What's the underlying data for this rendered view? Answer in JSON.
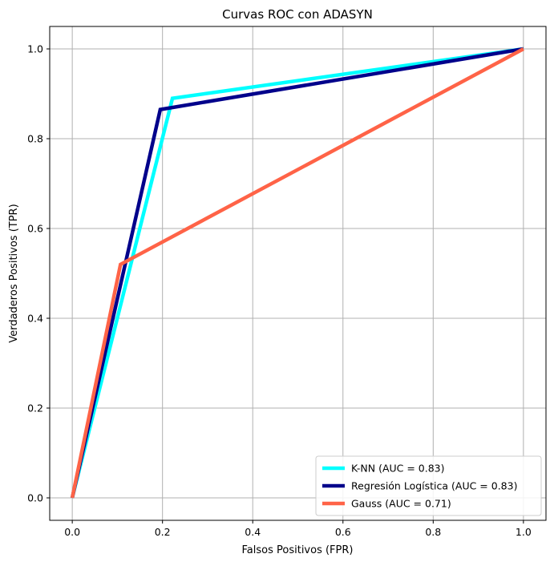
{
  "chart_data": {
    "type": "line",
    "title": "Curvas ROC con ADASYN",
    "xlabel": "Falsos Positivos (FPR)",
    "ylabel": "Verdaderos Positivos (TPR)",
    "xlim": [
      -0.05,
      1.05
    ],
    "ylim": [
      -0.05,
      1.05
    ],
    "xticks": [
      0.0,
      0.2,
      0.4,
      0.6,
      0.8,
      1.0
    ],
    "yticks": [
      0.0,
      0.2,
      0.4,
      0.6,
      0.8,
      1.0
    ],
    "xtick_labels": [
      "0.0",
      "0.2",
      "0.4",
      "0.6",
      "0.8",
      "1.0"
    ],
    "ytick_labels": [
      "0.0",
      "0.2",
      "0.4",
      "0.6",
      "0.8",
      "1.0"
    ],
    "grid": true,
    "legend_position": "lower-right",
    "series": [
      {
        "name": "K-NN (AUC = 0.83)",
        "color": "#00ffff",
        "x": [
          0.0,
          0.222,
          1.0
        ],
        "y": [
          0.0,
          0.89,
          1.0
        ]
      },
      {
        "name": "Regresión Logística (AUC = 0.83)",
        "color": "#00008b",
        "x": [
          0.0,
          0.195,
          1.0
        ],
        "y": [
          0.0,
          0.865,
          1.0
        ]
      },
      {
        "name": "Gauss (AUC = 0.71)",
        "color": "#ff6347",
        "x": [
          0.0,
          0.107,
          1.0
        ],
        "y": [
          0.0,
          0.52,
          1.0
        ]
      }
    ]
  }
}
